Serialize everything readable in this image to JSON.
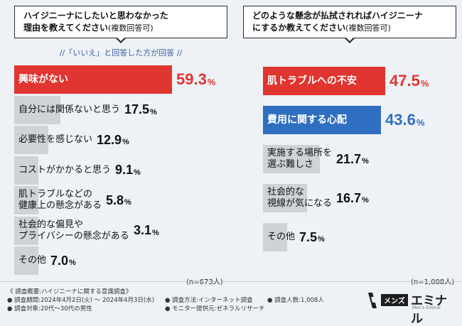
{
  "left": {
    "question_line1": "ハイジニーナにしたいと思わなかった",
    "question_line2": "理由を教えてください",
    "question_suffix": "(複数回答可)",
    "note": "//「いいえ」と回答した方が回答 //",
    "sample": "(n=673人)"
  },
  "right": {
    "question_line1": "どのような懸念が払拭されればハイジニーナ",
    "question_line2": "にするか教えてください",
    "question_suffix": "(複数回答可)",
    "sample": "(n=1,008人)"
  },
  "chart_data": [
    {
      "type": "bar",
      "orientation": "horizontal",
      "categories": [
        "興味がない",
        "自分には関係ないと思う",
        "必要性を感じない",
        "コストがかかると思う",
        "肌トラブルなどの健康上の懸念がある",
        "社会的な偏見やプライバシーの懸念がある",
        "その他"
      ],
      "category_lines": [
        [
          "興味がない"
        ],
        [
          "自分には関係ないと思う"
        ],
        [
          "必要性を感じない"
        ],
        [
          "コストがかかると思う"
        ],
        [
          "肌トラブルなどの",
          "健康上の懸念がある"
        ],
        [
          "社会的な偏見や",
          "プライバシーの懸念がある"
        ],
        [
          "その他"
        ]
      ],
      "values": [
        59.3,
        17.5,
        12.9,
        9.1,
        5.8,
        3.1,
        7.0
      ],
      "value_labels": [
        "59.3",
        "17.5",
        "12.9",
        "9.1",
        "5.8",
        "3.1",
        "7.0"
      ],
      "unit": "%",
      "highlight_color": "#e03530",
      "base_color": "#cfd2d6"
    },
    {
      "type": "bar",
      "orientation": "horizontal",
      "categories": [
        "肌トラブルへの不安",
        "費用に関する心配",
        "実施する場所を選ぶ難しさ",
        "社会的な視線が気になる",
        "その他"
      ],
      "category_lines": [
        [
          "肌トラブルへの不安"
        ],
        [
          "費用に関する心配"
        ],
        [
          "実施する場所を",
          "選ぶ難しさ"
        ],
        [
          "社会的な",
          "視線が気になる"
        ],
        [
          "その他"
        ]
      ],
      "values": [
        47.5,
        43.6,
        21.7,
        16.7,
        7.5
      ],
      "value_labels": [
        "47.5",
        "43.6",
        "21.7",
        "16.7",
        "7.5"
      ],
      "unit": "%",
      "highlight_colors": [
        "#e03530",
        "#2f6fc0"
      ],
      "base_color": "#cfd2d6"
    }
  ],
  "footer": {
    "title": "《 調査概要:ハイジニーナに関する意識調査》",
    "period": "● 調査期間:2024年4月2日(火) 〜 2024年4月3日(水)",
    "target": "● 調査対象:20代〜30代の男性",
    "method": "● 調査方法:インターネット調査",
    "provider": "● モニター提供元:ゼネラルリサーチ",
    "count": "● 調査人数:1,008人"
  },
  "logo": {
    "mens": "メンズ",
    "name": "エミナル",
    "tagline": "Men's Eminal"
  }
}
